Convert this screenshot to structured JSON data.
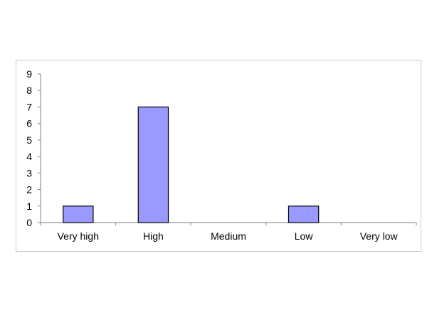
{
  "chart_data": {
    "type": "bar",
    "categories": [
      "Very high",
      "High",
      "Medium",
      "Low",
      "Very low"
    ],
    "values": [
      1,
      7,
      0,
      1,
      0
    ],
    "ylim": [
      0,
      9
    ],
    "yticks": [
      0,
      1,
      2,
      3,
      4,
      5,
      6,
      7,
      8,
      9
    ],
    "grid": false,
    "legend": "none",
    "bar_color": "#9999ff",
    "bar_edge_color": "#000000"
  }
}
